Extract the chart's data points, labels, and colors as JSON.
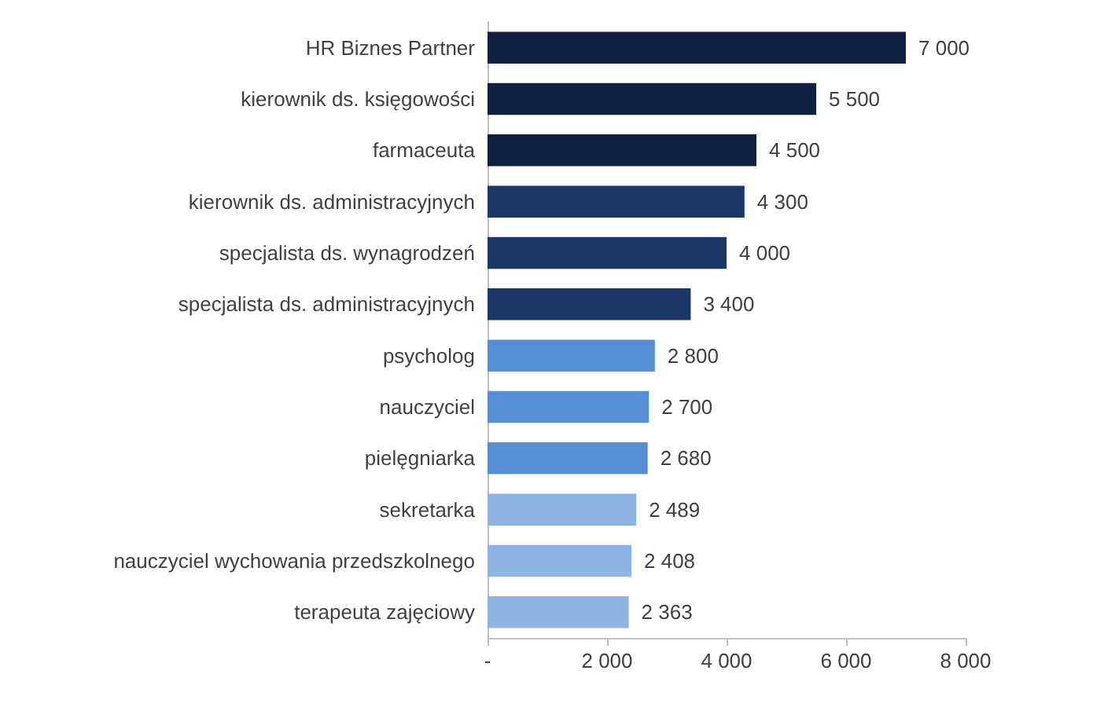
{
  "chart_data": {
    "type": "bar",
    "orientation": "horizontal",
    "categories": [
      "HR Biznes Partner",
      "kierownik ds. księgowości",
      "farmaceuta",
      "kierownik ds. administracyjnych",
      "specjalista ds. wynagrodzeń",
      "specjalista ds. administracyjnych",
      "psycholog",
      "nauczyciel",
      "pielęgniarka",
      "sekretarka",
      "nauczyciel wychowania przedszkolnego",
      "terapeuta zajęciowy"
    ],
    "values": [
      7000,
      5500,
      4500,
      4300,
      4000,
      3400,
      2800,
      2700,
      2680,
      2489,
      2408,
      2363
    ],
    "value_labels": [
      "7 000",
      "5 500",
      "4 500",
      "4 300",
      "4 000",
      "3 400",
      "2 800",
      "2 700",
      "2 680",
      "2 489",
      "2 408",
      "2 363"
    ],
    "colors": [
      "#0f2143",
      "#0f2143",
      "#0f2143",
      "#1b3766",
      "#1b3766",
      "#1b3766",
      "#558ed5",
      "#558ed5",
      "#558ed5",
      "#8db4e2",
      "#8db4e2",
      "#8db4e2"
    ],
    "xlim": [
      0,
      8000
    ],
    "xticks": [
      {
        "value": 0,
        "label": "-"
      },
      {
        "value": 2000,
        "label": "2 000"
      },
      {
        "value": 4000,
        "label": "4 000"
      },
      {
        "value": 6000,
        "label": "6 000"
      },
      {
        "value": 8000,
        "label": "8 000"
      }
    ],
    "grid": false
  }
}
